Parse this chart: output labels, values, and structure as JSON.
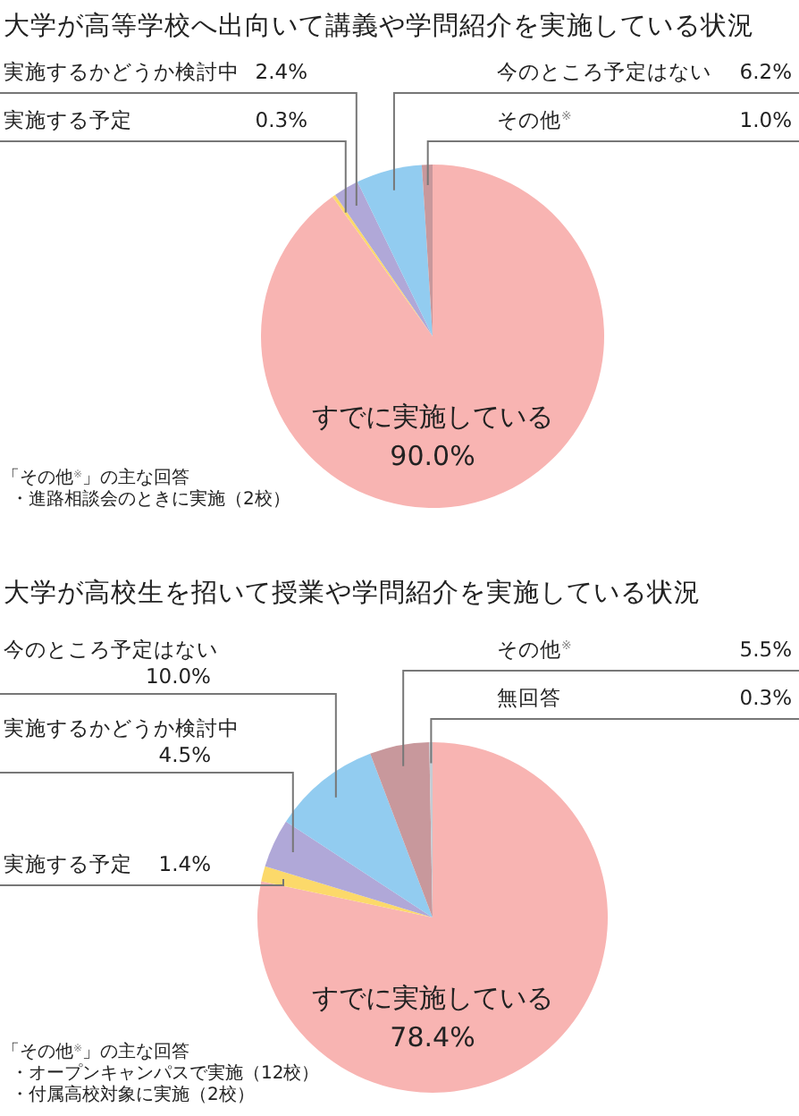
{
  "chart_data": [
    {
      "type": "pie",
      "title": "大学が高等学校へ出向いて講義や学問紹介を実施している状況",
      "categories": [
        "すでに実施している",
        "実施する予定",
        "実施するかどうか検討中",
        "今のところ予定はない",
        "その他$^{※}$"
      ],
      "values": [
        90.0,
        0.3,
        2.4,
        6.2,
        1.0
      ],
      "value_labels": [
        "90.0%",
        "0.3%",
        "2.4%",
        "6.2%",
        "1.0%"
      ],
      "colors": [
        "#f8b4b2",
        "#fcd96a",
        "#b0a8d8",
        "#92ccf0",
        "#c8989c"
      ],
      "annotations": [
        "「その他$^{※}$」の主な回答",
        "・進路相談会のときに実施（2校）"
      ]
    },
    {
      "type": "pie",
      "title": "大学が高校生を招いて授業や学問紹介を実施している状況",
      "categories": [
        "すでに実施している",
        "実施する予定",
        "実施するかどうか検討中",
        "今のところ予定はない",
        "その他$^{※}$",
        "無回答"
      ],
      "values": [
        78.4,
        1.4,
        4.5,
        10.0,
        5.5,
        0.3
      ],
      "value_labels": [
        "78.4%",
        "1.4%",
        "4.5%",
        "10.0%",
        "5.5%",
        "0.3%"
      ],
      "colors": [
        "#f8b4b2",
        "#fcd96a",
        "#b0a8d8",
        "#92ccf0",
        "#c8989c",
        "#c4ccd4"
      ],
      "annotations": [
        "「その他$^{※}$」の主な回答",
        "・オープンキャンパスで実施（12校）",
        "・付属高校対象に実施（2校）"
      ]
    }
  ]
}
